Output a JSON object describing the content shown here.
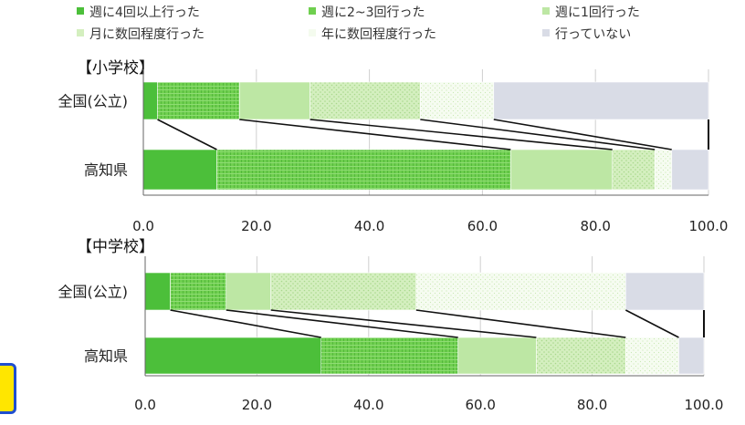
{
  "chart_data": [
    {
      "type": "bar",
      "stacked": true,
      "orientation": "horizontal",
      "title": "【小学校】",
      "categories": [
        "全国(公立)",
        "高知県"
      ],
      "series": [
        {
          "name": "週に4回以上行った",
          "values": [
            2.5,
            13.0
          ]
        },
        {
          "name": "週に2~3回行った",
          "values": [
            14.5,
            52.0
          ]
        },
        {
          "name": "週に1回行った",
          "values": [
            12.5,
            18.0
          ]
        },
        {
          "name": "月に数回程度行った",
          "values": [
            19.5,
            7.5
          ]
        },
        {
          "name": "年に数回程度行った",
          "values": [
            13.0,
            3.0
          ]
        },
        {
          "name": "行っていない",
          "values": [
            38.0,
            6.5
          ]
        }
      ],
      "xlim": [
        0,
        100
      ],
      "xticks": [
        "0.0",
        "20.0",
        "40.0",
        "60.0",
        "80.0",
        "100.0"
      ],
      "grid": true
    },
    {
      "type": "bar",
      "stacked": true,
      "orientation": "horizontal",
      "title": "【中学校】",
      "categories": [
        "全国(公立)",
        "高知県"
      ],
      "series": [
        {
          "name": "週に4回以上行った",
          "values": [
            4.5,
            31.5
          ]
        },
        {
          "name": "週に2~3回行った",
          "values": [
            10.0,
            24.5
          ]
        },
        {
          "name": "週に1回行った",
          "values": [
            8.0,
            14.0
          ]
        },
        {
          "name": "月に数回程度行った",
          "values": [
            26.0,
            16.0
          ]
        },
        {
          "name": "年に数回程度行った",
          "values": [
            37.5,
            9.5
          ]
        },
        {
          "name": "行っていない",
          "values": [
            14.0,
            4.5
          ]
        }
      ],
      "xlim": [
        0,
        100
      ],
      "xticks": [
        "0.0",
        "20.0",
        "40.0",
        "60.0",
        "80.0",
        "100.0"
      ],
      "grid": true
    }
  ],
  "legend": [
    {
      "label": "週に4回以上行った",
      "color": "#4cbf3a"
    },
    {
      "label": "週に2~3回行った",
      "color": "#6fcf4f"
    },
    {
      "label": "週に1回行った",
      "color": "#bde7a4"
    },
    {
      "label": "月に数回程度行った",
      "color": "#d4efbf"
    },
    {
      "label": "年に数回程度行った",
      "color": "#f4fbee"
    },
    {
      "label": "行っていない",
      "color": "#d9dce6"
    }
  ]
}
